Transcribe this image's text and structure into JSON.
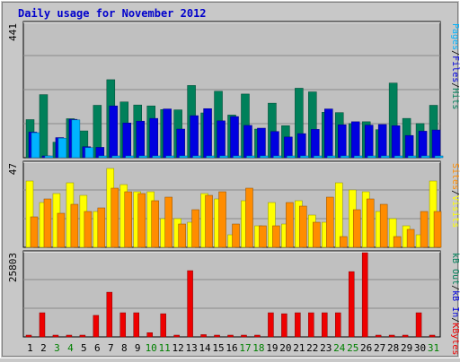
{
  "chart_data": {
    "type": "bar",
    "title": "Daily usage for November 2012",
    "days": [
      "1",
      "2",
      "3",
      "4",
      "5",
      "6",
      "7",
      "8",
      "9",
      "10",
      "11",
      "12",
      "13",
      "14",
      "15",
      "16",
      "17",
      "18",
      "19",
      "20",
      "21",
      "22",
      "23",
      "24",
      "25",
      "26",
      "27",
      "28",
      "29",
      "30",
      "31"
    ],
    "weekend_days": [
      3,
      4,
      10,
      11,
      17,
      18,
      24,
      25,
      31
    ],
    "colors": {
      "background": "#c8c8c8",
      "plot_bg": "#c0c0c0",
      "grid": "#8a8a8a",
      "title": "#0000cc",
      "hits": "#00805a",
      "files": "#0000e0",
      "pages": "#00b4ff",
      "visits": "#ffff00",
      "sites": "#ff8c00",
      "kbytes": "#ee0000",
      "weekday_label": "#000000",
      "weekend_label": "#008000"
    },
    "panels": [
      {
        "id": "hits",
        "max_label": "441",
        "ylim": [
          0,
          441
        ],
        "legend": [
          {
            "text": "Hits",
            "color": "#00805a"
          },
          {
            "text": "/",
            "color": "#000000"
          },
          {
            "text": "Files",
            "color": "#0000e0"
          },
          {
            "text": "/",
            "color": "#000000"
          },
          {
            "text": "Pages",
            "color": "#00b4ff"
          }
        ],
        "series": [
          {
            "name": "Hits",
            "color": "#00805a",
            "values": [
              125,
              207,
              51,
              128,
              88,
              172,
              256,
              183,
              173,
              170,
              158,
              157,
              237,
              147,
              218,
              140,
              209,
              94,
              179,
              105,
              228,
              216,
              149,
              148,
              112,
              118,
              92,
              245,
              129,
              112,
              172
            ]
          },
          {
            "name": "Files",
            "color": "#0000e0",
            "values": [
              84,
              0,
              66,
              126,
              36,
              34,
              170,
              114,
              120,
              129,
              160,
              94,
              138,
              161,
              121,
              135,
              106,
              97,
              86,
              68,
              79,
              93,
              160,
              108,
              118,
              107,
              109,
              105,
              73,
              87,
              91
            ]
          },
          {
            "name": "Pages",
            "color": "#00b4ff",
            "values": [
              82,
              0,
              64,
              124,
              33,
              0,
              0,
              0,
              0,
              0,
              0,
              0,
              0,
              0,
              0,
              0,
              0,
              0,
              0,
              0,
              0,
              0,
              0,
              0,
              0,
              0,
              0,
              0,
              0,
              0,
              0
            ]
          }
        ]
      },
      {
        "id": "visits",
        "max_label": "47",
        "ylim": [
          0,
          47
        ],
        "legend": [
          {
            "text": "Visits",
            "color": "#ffff00"
          },
          {
            "text": "/",
            "color": "#000000"
          },
          {
            "text": "Sites",
            "color": "#ff8c00"
          }
        ],
        "series": [
          {
            "name": "Visits",
            "color": "#ffff00",
            "values": [
              37,
              25,
              30,
              36,
              29,
              20,
              44,
              35,
              31,
              31,
              16,
              16,
              14,
              30,
              27,
              7,
              26,
              12,
              25,
              13,
              26,
              18,
              14,
              36,
              32,
              31,
              20,
              16,
              12,
              7,
              37
            ]
          },
          {
            "name": "Sites",
            "color": "#ff8c00",
            "values": [
              17,
              27,
              19,
              24,
              20,
              22,
              33,
              31,
              30,
              26,
              28,
              13,
              21,
              29,
              31,
              13,
              33,
              12,
              12,
              25,
              23,
              14,
              28,
              6,
              21,
              27,
              24,
              6,
              10,
              20,
              20
            ]
          }
        ]
      },
      {
        "id": "kbytes",
        "max_label": "25803",
        "ylim": [
          0,
          25803
        ],
        "legend": [
          {
            "text": "KBytes",
            "color": "#ee0000"
          },
          {
            "text": "/",
            "color": "#000000"
          },
          {
            "text": "kB In",
            "color": "#0000e0"
          },
          {
            "text": "/",
            "color": "#000000"
          },
          {
            "text": "kB Out",
            "color": "#00805a"
          }
        ],
        "series": [
          {
            "name": "KBytes",
            "color": "#ee0000",
            "values": [
              300,
              7400,
              300,
              300,
              300,
              6600,
              13700,
              7400,
              7400,
              1300,
              7100,
              300,
              20300,
              700,
              300,
              300,
              300,
              300,
              7400,
              7100,
              7400,
              7400,
              7400,
              7400,
              20000,
              25803,
              300,
              300,
              300,
              7400,
              0
            ]
          }
        ]
      }
    ]
  },
  "page": {
    "title": "Daily usage for November 2012"
  }
}
